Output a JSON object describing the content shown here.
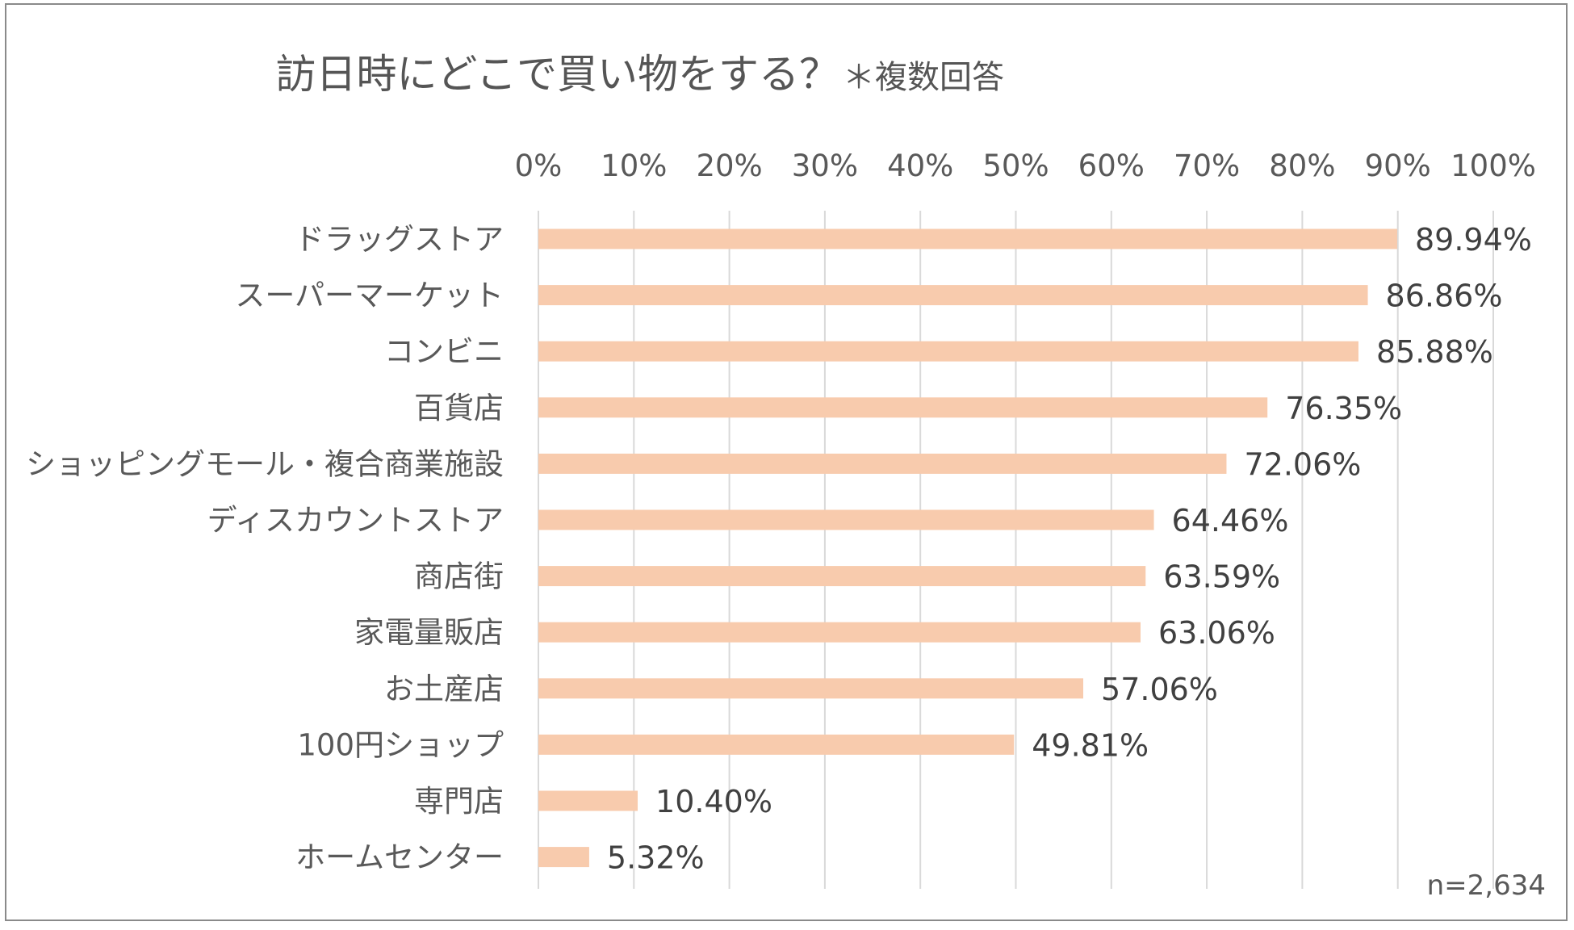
{
  "chart_data": {
    "type": "bar",
    "orientation": "horizontal",
    "title": "訪日時にどこで買い物をする？",
    "subtitle": "＊複数回答",
    "categories": [
      "ドラッグストア",
      "スーパーマーケット",
      "コンビニ",
      "百貨店",
      "ショッピングモール・複合商業施設",
      "ディスカウントストア",
      "商店街",
      "家電量販店",
      "お土産店",
      "100円ショップ",
      "専門店",
      "ホームセンター"
    ],
    "values": [
      89.94,
      86.86,
      85.88,
      76.35,
      72.06,
      64.46,
      63.59,
      63.06,
      57.06,
      49.81,
      10.4,
      5.32
    ],
    "value_labels": [
      "89.94%",
      "86.86%",
      "85.88%",
      "76.35%",
      "72.06%",
      "64.46%",
      "63.59%",
      "63.06%",
      "57.06%",
      "49.81%",
      "10.40%",
      "5.32%"
    ],
    "x_ticks": [
      "0%",
      "10%",
      "20%",
      "30%",
      "40%",
      "50%",
      "60%",
      "70%",
      "80%",
      "90%",
      "100%"
    ],
    "xlim": [
      0,
      100
    ],
    "xlabel": "",
    "ylabel": "",
    "grid": true,
    "axis_position": "top",
    "note": "n=2,634",
    "bar_color": "#F8CBAD",
    "grid_color": "#D9D9D9"
  }
}
